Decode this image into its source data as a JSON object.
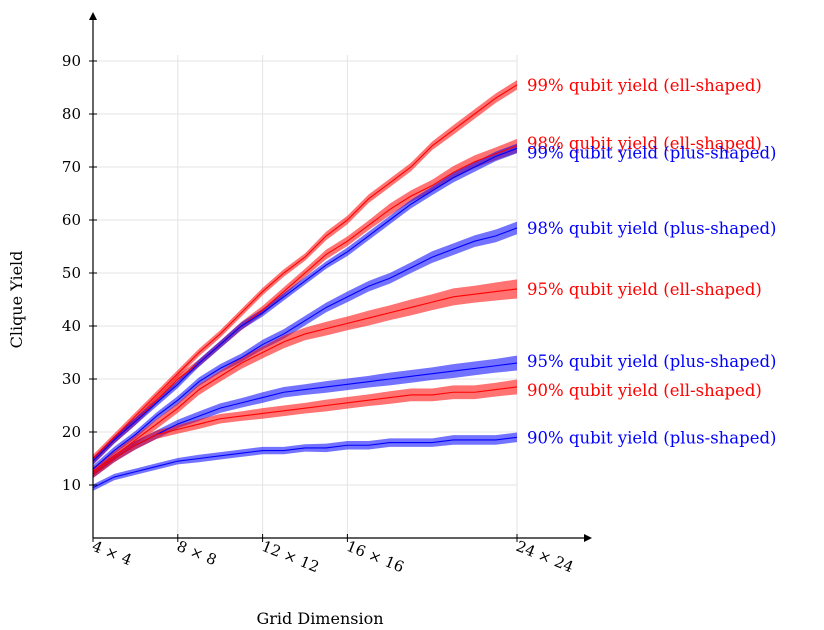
{
  "chart_data": {
    "type": "line",
    "xlabel": "Grid Dimension",
    "ylabel": "Clique Yield",
    "x_ticks": [
      {
        "value": 4,
        "label": "4 × 4"
      },
      {
        "value": 8,
        "label": "8 × 8"
      },
      {
        "value": 12,
        "label": "12 × 12"
      },
      {
        "value": 16,
        "label": "16 × 16"
      },
      {
        "value": 24,
        "label": "24 × 24"
      }
    ],
    "y_ticks": [
      10,
      20,
      30,
      40,
      50,
      60,
      70,
      80,
      90
    ],
    "xlim": [
      4,
      24
    ],
    "ylim": [
      0,
      90
    ],
    "grid": true,
    "legend": "inline labels at right end of each line",
    "x": [
      4,
      5,
      6,
      7,
      8,
      9,
      10,
      11,
      12,
      13,
      14,
      15,
      16,
      17,
      18,
      19,
      20,
      21,
      22,
      23,
      24
    ],
    "series": [
      {
        "name": "99% qubit yield (ell-shaped)",
        "color": "#ff0000",
        "values": [
          15,
          19,
          23,
          27,
          31,
          35,
          38.5,
          42.5,
          46.5,
          50,
          53,
          57,
          60,
          64,
          67,
          70,
          74,
          77,
          80,
          83,
          85.5
        ],
        "band": [
          0.7,
          0.7,
          0.7,
          0.7,
          0.7,
          0.7,
          0.7,
          0.7,
          0.7,
          0.7,
          0.7,
          0.8,
          0.8,
          0.8,
          0.8,
          0.8,
          0.8,
          0.9,
          0.9,
          0.9,
          0.9
        ]
      },
      {
        "name": "98% qubit yield (ell-shaped)",
        "color": "#ff0000",
        "values": [
          14.5,
          18.5,
          22,
          26,
          30,
          33,
          36.5,
          40,
          43,
          46.5,
          50,
          53.5,
          56,
          59,
          62,
          64.5,
          66.5,
          69,
          71,
          72.5,
          74
        ],
        "band": [
          0.7,
          0.7,
          0.7,
          0.7,
          0.7,
          0.7,
          0.7,
          0.8,
          0.8,
          0.8,
          0.8,
          0.9,
          0.9,
          0.9,
          1.1,
          1.1,
          1.1,
          1.2,
          1.2,
          1.2,
          1.3
        ]
      },
      {
        "name": "99% qubit yield (plus-shaped)",
        "color": "#0000ff",
        "values": [
          14.5,
          18.5,
          22,
          25.5,
          29,
          33,
          36.5,
          40,
          42.5,
          45.5,
          48.5,
          51.5,
          54,
          57,
          60,
          63,
          65.5,
          68,
          70,
          72,
          73.5
        ],
        "band": [
          0.7,
          0.7,
          0.7,
          0.7,
          0.7,
          0.7,
          0.7,
          0.7,
          0.7,
          0.7,
          0.7,
          0.7,
          0.8,
          0.8,
          0.8,
          0.8,
          0.8,
          0.9,
          0.9,
          0.9,
          0.9
        ]
      },
      {
        "name": "98% qubit yield (plus-shaped)",
        "color": "#0000ff",
        "values": [
          13,
          16.5,
          19.5,
          23,
          26,
          29.5,
          32,
          34,
          36.5,
          38.5,
          41,
          43.5,
          45.5,
          47.5,
          49,
          51,
          53,
          54.5,
          56,
          57,
          58.5
        ],
        "band": [
          0.7,
          0.7,
          0.7,
          0.7,
          0.8,
          0.8,
          0.8,
          0.8,
          0.9,
          0.9,
          0.9,
          0.9,
          1.0,
          1.0,
          1.0,
          1.0,
          1.1,
          1.1,
          1.1,
          1.2,
          1.2
        ]
      },
      {
        "name": "95% qubit yield (ell-shaped)",
        "color": "#ff0000",
        "values": [
          12.5,
          15.5,
          18.5,
          21.5,
          24.5,
          28,
          30.5,
          33,
          35,
          37,
          38.5,
          39.5,
          40.5,
          41.5,
          42.5,
          43.5,
          44.5,
          45.5,
          46,
          46.5,
          47
        ],
        "band": [
          0.8,
          0.8,
          0.8,
          0.9,
          0.9,
          1.0,
          1.0,
          1.1,
          1.1,
          1.2,
          1.2,
          1.3,
          1.3,
          1.4,
          1.4,
          1.5,
          1.5,
          1.6,
          1.6,
          1.7,
          1.8
        ]
      },
      {
        "name": "95% qubit yield (plus-shaped)",
        "color": "#0000ff",
        "values": [
          12,
          15,
          17.5,
          19.5,
          21.5,
          23,
          24.5,
          25.5,
          26.5,
          27.5,
          28,
          28.5,
          29,
          29.5,
          30,
          30.5,
          31,
          31.5,
          32,
          32.5,
          33
        ],
        "band": [
          0.7,
          0.7,
          0.8,
          0.8,
          0.8,
          0.9,
          0.9,
          0.9,
          1.0,
          1.0,
          1.0,
          1.1,
          1.1,
          1.1,
          1.2,
          1.2,
          1.2,
          1.3,
          1.3,
          1.3,
          1.4
        ]
      },
      {
        "name": "90% qubit yield (ell-shaped)",
        "color": "#ff0000",
        "values": [
          12,
          15,
          17.5,
          19.5,
          20.5,
          21.5,
          22.5,
          23,
          23.5,
          24,
          24.5,
          25,
          25.5,
          26,
          26.5,
          27,
          27,
          27.5,
          27.5,
          28,
          28.5
        ],
        "band": [
          0.7,
          0.7,
          0.8,
          0.8,
          0.8,
          0.9,
          0.9,
          0.9,
          1.0,
          1.0,
          1.0,
          1.1,
          1.1,
          1.1,
          1.2,
          1.2,
          1.2,
          1.3,
          1.3,
          1.3,
          1.4
        ]
      },
      {
        "name": "90% qubit yield (plus-shaped)",
        "color": "#0000ff",
        "values": [
          9.5,
          11.5,
          12.5,
          13.5,
          14.5,
          15,
          15.5,
          16,
          16.5,
          16.5,
          17,
          17,
          17.5,
          17.5,
          18,
          18,
          18,
          18.5,
          18.5,
          18.5,
          19
        ],
        "band": [
          0.6,
          0.6,
          0.6,
          0.6,
          0.6,
          0.7,
          0.7,
          0.7,
          0.7,
          0.7,
          0.7,
          0.8,
          0.8,
          0.8,
          0.8,
          0.8,
          0.8,
          0.9,
          0.9,
          0.9,
          0.9
        ]
      }
    ]
  }
}
